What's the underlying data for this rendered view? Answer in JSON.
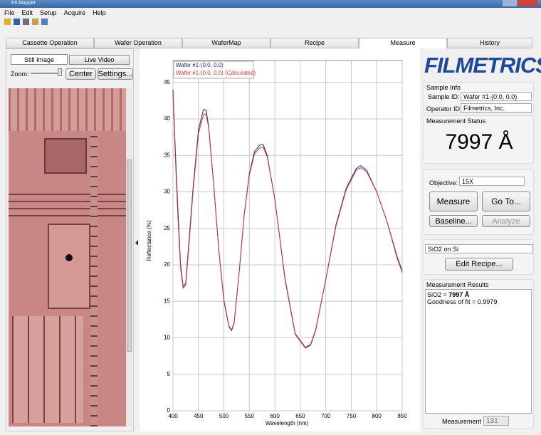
{
  "window": {
    "title": "FILMapper"
  },
  "menu": [
    "File",
    "Edit",
    "Setup",
    "Acquire",
    "Help"
  ],
  "tabs": [
    "Cassette Operation",
    "Wafer Operation",
    "WaferMap",
    "Recipe",
    "Measure",
    "History"
  ],
  "active_tab": 4,
  "left_panel": {
    "tabs": [
      "Still Image",
      "Live Video"
    ],
    "zoom_label": "Zoom:",
    "buttons": [
      "Center",
      "Settings..."
    ]
  },
  "chart": {
    "type": "line",
    "xlabel": "Wavelength (nm)",
    "ylabel": "Reflectance (%)",
    "xlim": [
      400,
      850
    ],
    "ylim": [
      0,
      48
    ],
    "xticks": [
      400,
      450,
      500,
      550,
      600,
      650,
      700,
      750,
      800,
      850
    ],
    "yticks": [
      0,
      5,
      10,
      15,
      20,
      25,
      30,
      35,
      40,
      45
    ],
    "grid": true,
    "x": [
      400,
      405,
      410,
      415,
      420,
      425,
      430,
      440,
      450,
      460,
      465,
      470,
      480,
      490,
      500,
      510,
      515,
      520,
      530,
      540,
      550,
      560,
      570,
      577,
      585,
      600,
      620,
      640,
      660,
      670,
      680,
      700,
      720,
      740,
      760,
      768,
      780,
      800,
      820,
      840,
      850
    ],
    "series": [
      {
        "name": "Wafer #1-(0.0, 0.0)",
        "color": "#1c1c8c",
        "values": [
          44,
          35,
          27,
          20,
          17,
          17.5,
          22,
          31,
          38.5,
          41.3,
          41.2,
          39,
          31,
          22,
          15,
          11.5,
          11,
          12,
          19,
          27,
          32.5,
          35.5,
          36.4,
          36.5,
          35,
          29,
          18,
          10.5,
          8.6,
          9,
          11,
          18,
          25.5,
          30.5,
          33.2,
          33.6,
          33,
          30,
          26,
          21,
          19
        ]
      },
      {
        "name": "Wafer #1-(0.0, 0.0) (Calculated)",
        "color": "#d03838",
        "values": [
          43.5,
          34,
          26,
          19.5,
          16.8,
          17.2,
          21.5,
          30.5,
          38,
          40.6,
          40.7,
          38.8,
          31,
          22,
          15.2,
          11.6,
          11.1,
          12.1,
          19,
          27,
          32.3,
          35.2,
          36,
          36.1,
          34.8,
          29,
          18.2,
          10.6,
          8.7,
          9.1,
          11.1,
          18,
          25.3,
          30.3,
          33,
          33.3,
          32.8,
          30,
          26,
          21.2,
          19.2
        ]
      }
    ]
  },
  "right_panel": {
    "logo": "FILMETRICS",
    "sample_info": {
      "heading": "Sample Info",
      "sample_id_label": "Sample ID:",
      "sample_id": "Wafer #1-(0.0, 0.0)",
      "operator_id_label": "Operator ID:",
      "operator_id": "Filmetrics, Inc."
    },
    "status": {
      "heading": "Measurement Status",
      "value": "7997 Å"
    },
    "objective_label": "Objective:",
    "objective": "15X",
    "buttons": {
      "measure": "Measure",
      "go_to": "Go To...",
      "baseline": "Baseline...",
      "analyze": "Analyze"
    },
    "recipe": "SiO2 on Si",
    "edit_recipe": "Edit Recipe...",
    "results": {
      "heading": "Measurement Results",
      "label": "SiO2 =",
      "value": "7997 Å",
      "fit": "Goodness of fit = 0.9979"
    },
    "measurement_label": "Measurement #",
    "measurement_number": 131
  }
}
